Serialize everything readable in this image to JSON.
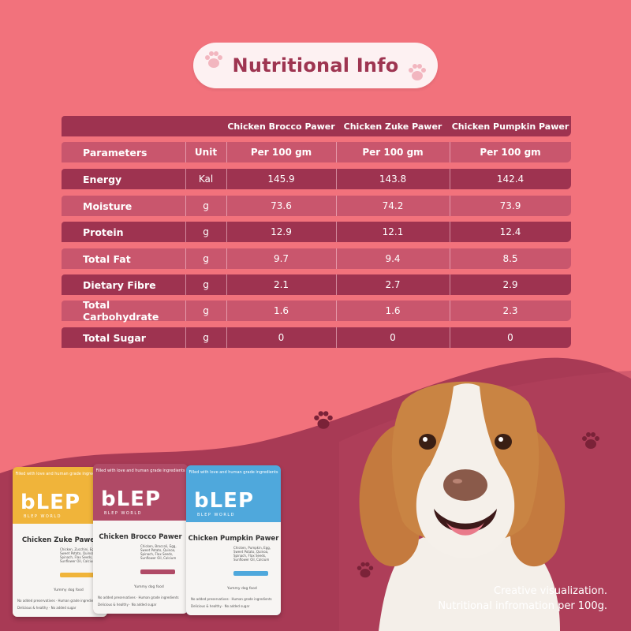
{
  "title": "Nutritional Info",
  "table": {
    "header_params": "Parameters",
    "header_unit": "Unit",
    "products": [
      "Chicken Brocco Pawer",
      "Chicken Zuke Pawer",
      "Chicken Pumpkin Pawer"
    ],
    "basis": [
      "Per 100 gm",
      "Per 100 gm",
      "Per 100 gm"
    ],
    "rows": [
      {
        "name": "Energy",
        "unit": "Kal",
        "values": [
          "145.9",
          "143.8",
          "142.4"
        ]
      },
      {
        "name": "Moisture",
        "unit": "g",
        "values": [
          "73.6",
          "74.2",
          "73.9"
        ]
      },
      {
        "name": "Protein",
        "unit": "g",
        "values": [
          "12.9",
          "12.1",
          "12.4"
        ]
      },
      {
        "name": "Total Fat",
        "unit": "g",
        "values": [
          "9.7",
          "9.4",
          "8.5"
        ]
      },
      {
        "name": "Dietary Fibre",
        "unit": "g",
        "values": [
          "2.1",
          "2.7",
          "2.9"
        ]
      },
      {
        "name": "Total Carbohydrate",
        "unit": "g",
        "values": [
          "1.6",
          "1.6",
          "2.3"
        ]
      },
      {
        "name": "Total Sugar",
        "unit": "g",
        "values": [
          "0",
          "0",
          "0"
        ]
      }
    ]
  },
  "pouches": [
    {
      "name": "Chicken Zuke Pawer",
      "color": "#f0b43a",
      "top_text": "Filled with love and human grade ingredients",
      "logo": "bLEP",
      "sub_logo": "BLEP WORLD",
      "ingredients": "Chicken, Zucchini, Egg, Sweet Potato, Quinoa, Spinach, Flax Seeds, Sunflower Oil, Calcium",
      "badge": "Yummy dog food",
      "footer": [
        "No added preservatives",
        "Human grade ingredients",
        "Delicious & healthy",
        "No added sugar"
      ]
    },
    {
      "name": "Chicken Brocco Pawer",
      "color": "#b04a66",
      "top_text": "Filled with love and human grade ingredients",
      "logo": "bLEP",
      "sub_logo": "BLEP WORLD",
      "ingredients": "Chicken, Broccoli, Egg, Sweet Potato, Quinoa, Spinach, Flax Seeds, Sunflower Oil, Calcium",
      "badge": "Yummy dog food",
      "footer": [
        "No added preservatives",
        "Human grade ingredients",
        "Delicious & healthy",
        "No added sugar"
      ]
    },
    {
      "name": "Chicken Pumpkin Pawer",
      "color": "#4fa8dc",
      "top_text": "Filled with love and human grade ingredients",
      "logo": "bLEP",
      "sub_logo": "BLEP WORLD",
      "ingredients": "Chicken, Pumpkin, Egg, Sweet Potato, Quinoa, Spinach, Flax Seeds, Sunflower Oil, Calcium",
      "badge": "Yummy dog food",
      "footer": [
        "No added preservatives",
        "Human grade ingredients",
        "Delicious & healthy",
        "No added sugar"
      ]
    }
  ],
  "disclaimer": [
    "Creative visualization.",
    "Nutritional infromation per 100g."
  ],
  "colors": {
    "background": "#f2727c",
    "dark_row": "#9e3350",
    "light_row": "#c9566d",
    "wave": "#a83a55",
    "title": "#9e3551"
  }
}
